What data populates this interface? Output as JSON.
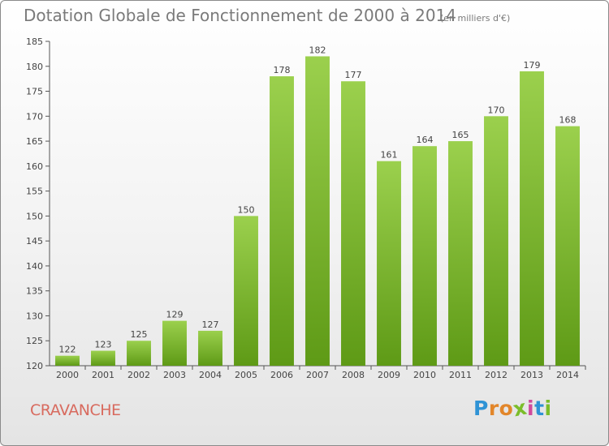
{
  "title": "Dotation Globale de Fonctionnement de 2000 à 2014",
  "unit": "(en milliers d'€)",
  "commune": "CRAVANCHE",
  "logo": {
    "letters": [
      "P",
      "r",
      "o",
      "x",
      "i",
      "t",
      "i"
    ],
    "colors": [
      "#2f93d5",
      "#e2862a",
      "#e2862a",
      "#7bbd2a",
      "#d04a9c",
      "#2f93d5",
      "#7bbd2a"
    ]
  },
  "colors": {
    "bar_top": "#9bd04d",
    "bar_bottom": "#5e9a16",
    "title": "#7a7a7a",
    "commune": "#d86a5e"
  },
  "chart_data": {
    "type": "bar",
    "categories": [
      "2000",
      "2001",
      "2002",
      "2003",
      "2004",
      "2005",
      "2006",
      "2007",
      "2008",
      "2009",
      "2010",
      "2011",
      "2012",
      "2013",
      "2014"
    ],
    "values": [
      122,
      123,
      125,
      129,
      127,
      150,
      178,
      182,
      177,
      161,
      164,
      165,
      170,
      179,
      168
    ],
    "ylim": [
      120,
      185
    ],
    "yticks": [
      120,
      125,
      130,
      135,
      140,
      145,
      150,
      155,
      160,
      165,
      170,
      175,
      180,
      185
    ],
    "grid": false,
    "xlabel": "",
    "ylabel": ""
  }
}
